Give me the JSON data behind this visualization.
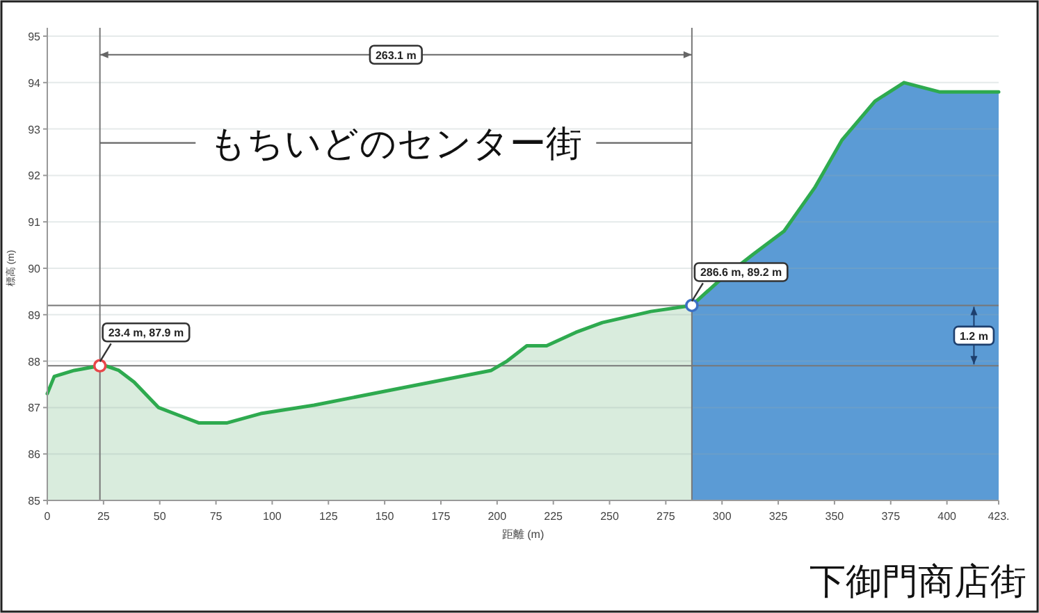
{
  "chart_data": {
    "type": "area",
    "xlabel": "距離 (m)",
    "ylabel": "標高 (m)",
    "xlim": [
      0,
      423
    ],
    "xticks": [
      0,
      25,
      50,
      75,
      100,
      125,
      150,
      175,
      200,
      225,
      250,
      275,
      300,
      325,
      350,
      375,
      400,
      {
        "value": 423,
        "label": "423."
      }
    ],
    "ylim": [
      85,
      95
    ],
    "yticks": [
      85,
      86,
      87,
      88,
      89,
      90,
      91,
      92,
      93,
      94,
      95
    ],
    "grid": "y",
    "series": [
      {
        "color": "#d9ecdd",
        "x": [
          0,
          3.1,
          12,
          23.4,
          26,
          31.8,
          38.6,
          49.5,
          67.3,
          80,
          94.9,
          118.6,
          150,
          197.4,
          204.4,
          213.2,
          222,
          235,
          246.8,
          268.4,
          286.6
        ],
        "values": [
          87.3,
          87.67,
          87.8,
          87.9,
          87.9,
          87.8,
          87.55,
          87.0,
          86.67,
          86.67,
          86.87,
          87.05,
          87.35,
          87.8,
          88.0,
          88.33,
          88.33,
          88.62,
          88.83,
          89.07,
          89.2
        ]
      },
      {
        "color": "#5b9bd5",
        "x": [
          286.6,
          298,
          313.8,
          327.6,
          341.4,
          353.3,
          368,
          380.9,
          396.6,
          423
        ],
        "values": [
          89.2,
          89.7,
          90.3,
          90.8,
          91.75,
          92.76,
          93.6,
          94.0,
          93.8,
          93.8
        ]
      },
      {
        "type": "line",
        "color": "#2eaa4f",
        "x": [
          0,
          3.1,
          12,
          23.4,
          26,
          31.8,
          38.6,
          49.5,
          67.3,
          80,
          94.9,
          118.6,
          150,
          197.4,
          204.4,
          213.2,
          222,
          235,
          246.8,
          268.4,
          286.6,
          298,
          313.8,
          327.6,
          341.4,
          353.3,
          368,
          380.9,
          396.6,
          423
        ],
        "values": [
          87.3,
          87.67,
          87.8,
          87.9,
          87.9,
          87.8,
          87.55,
          87.0,
          86.67,
          86.67,
          86.87,
          87.05,
          87.35,
          87.8,
          88.0,
          88.33,
          88.33,
          88.62,
          88.83,
          89.07,
          89.2,
          89.7,
          90.3,
          90.8,
          91.75,
          92.76,
          93.6,
          94.0,
          93.8,
          93.8
        ]
      },
      {
        "type": "scatter",
        "x": [
          23.4,
          286.6
        ],
        "values": [
          87.9,
          89.2
        ],
        "colors": [
          "#e8474a",
          "#3b6fc4"
        ]
      }
    ],
    "ref_lines": [
      {
        "axis": "x",
        "value": 23.4,
        "color": "#777777"
      },
      {
        "axis": "x",
        "value": 286.6,
        "color": "#777777"
      },
      {
        "axis": "y",
        "value": 87.9,
        "color": "#777777"
      },
      {
        "axis": "y",
        "value": 89.2,
        "color": "#777777"
      }
    ],
    "annotations": [
      {
        "text": "23.4 m, 87.9 m",
        "x": 23.4,
        "y": 87.9
      },
      {
        "text": "286.6 m, 89.2 m",
        "x": 286.6,
        "y": 89.2
      },
      {
        "text": "263.1 m",
        "x": 155,
        "y": 94.6
      },
      {
        "text": "1.2 m",
        "x": 412,
        "y": 88.55
      },
      {
        "text": "もちいどのセンター街",
        "x": 23.4,
        "y": 92.7
      },
      "下御門商店街"
    ]
  }
}
